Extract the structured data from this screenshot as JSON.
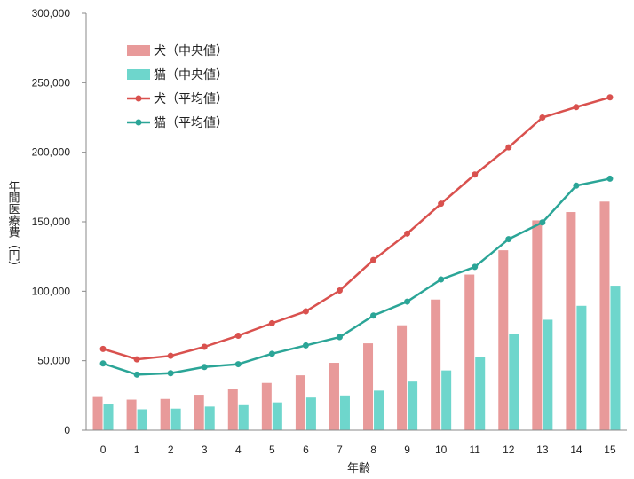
{
  "chart_data": {
    "type": "bar",
    "xlabel": "年齢",
    "ylabel": "年間医療費（円）",
    "ylim": [
      0,
      300000
    ],
    "yticks": [
      "0",
      "50,000",
      "100,000",
      "150,000",
      "200,000",
      "250,000",
      "300,000"
    ],
    "categories": [
      "0",
      "1",
      "2",
      "3",
      "4",
      "5",
      "6",
      "7",
      "8",
      "9",
      "10",
      "11",
      "12",
      "13",
      "14",
      "15"
    ],
    "grid": false,
    "legend_position": "top-left",
    "series": [
      {
        "name": "犬（中央値）",
        "kind": "bar",
        "color": "#E89A9A",
        "values": [
          24500,
          22000,
          22500,
          25500,
          30000,
          34000,
          39500,
          48500,
          62500,
          75500,
          94000,
          112000,
          129500,
          151000,
          157000,
          164500
        ]
      },
      {
        "name": "猫（中央値）",
        "kind": "bar",
        "color": "#6ED6CC",
        "values": [
          18500,
          15000,
          15500,
          17000,
          18000,
          20000,
          23500,
          25000,
          28500,
          35000,
          43000,
          52500,
          69500,
          79500,
          89500,
          104000
        ]
      },
      {
        "name": "犬（平均値）",
        "kind": "line",
        "color": "#D9514E",
        "values": [
          58500,
          51000,
          53500,
          60000,
          68000,
          77000,
          85500,
          100500,
          122500,
          141500,
          163000,
          184000,
          203500,
          225000,
          232500,
          239500
        ]
      },
      {
        "name": "猫（平均値）",
        "kind": "line",
        "color": "#2BA597",
        "values": [
          48000,
          40000,
          41000,
          45500,
          47500,
          55000,
          61000,
          67000,
          82500,
          92500,
          108500,
          117500,
          137500,
          149500,
          176000,
          181000
        ]
      }
    ]
  }
}
